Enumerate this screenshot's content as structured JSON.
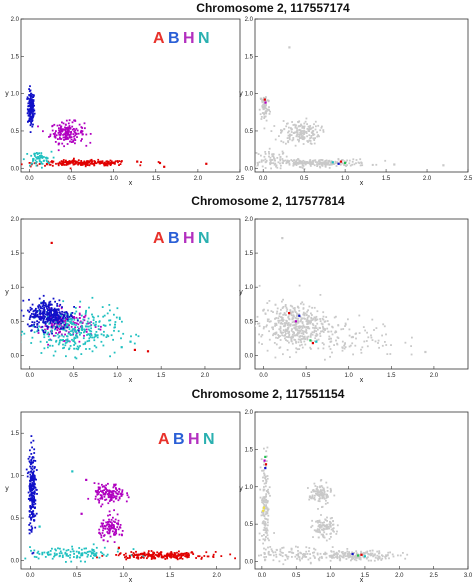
{
  "figure": {
    "legend_letters": [
      {
        "text": "A",
        "color": "#e8322b"
      },
      {
        "text": "B",
        "color": "#2a5fd6"
      },
      {
        "text": "H",
        "color": "#b22fbf"
      },
      {
        "text": "N",
        "color": "#2ab0b0"
      }
    ]
  },
  "chart_data": [
    {
      "type": "scatter",
      "title": "Chromosome 2, 117557174",
      "panels": [
        {
          "xlabel": "x",
          "ylabel": "y",
          "xlim": [
            -0.1,
            2.5
          ],
          "ylim": [
            -0.05,
            2.0
          ],
          "xticks": [
            "0.0",
            "0.5",
            "1.0",
            "1.5",
            "2.0",
            "2.5"
          ],
          "yticks": [
            "0.0",
            "0.5",
            "1.0",
            "1.5",
            "2.0"
          ],
          "legend": true,
          "clusters": [
            {
              "genotype": "B",
              "color": "#1010c8",
              "cx": 0.02,
              "cy": 0.8,
              "sx": 0.02,
              "sy": 0.12,
              "n": 150
            },
            {
              "genotype": "H",
              "color": "#b000c0",
              "cx": 0.45,
              "cy": 0.48,
              "sx": 0.1,
              "sy": 0.07,
              "n": 170
            },
            {
              "genotype": "A",
              "color": "#e00000",
              "cx": 0.65,
              "cy": 0.07,
              "sx": 0.28,
              "sy": 0.018,
              "n": 220
            },
            {
              "genotype": "N",
              "color": "#20c0c0",
              "cx": 0.1,
              "cy": 0.12,
              "sx": 0.08,
              "sy": 0.05,
              "n": 55
            }
          ],
          "outliers": [
            {
              "x": 1.55,
              "y": 0.07,
              "color": "#e00000"
            },
            {
              "x": 1.6,
              "y": 0.02,
              "color": "#e00000"
            },
            {
              "x": 2.1,
              "y": 0.06,
              "color": "#e00000"
            },
            {
              "x": 1.28,
              "y": 0.09,
              "color": "#e00000"
            }
          ]
        },
        {
          "xlabel": "x",
          "ylabel": "y",
          "xlim": [
            -0.1,
            2.5
          ],
          "ylim": [
            -0.05,
            2.0
          ],
          "xticks": [
            "0.0",
            "0.5",
            "1.0",
            "1.5",
            "2.0",
            "2.5"
          ],
          "yticks": [
            "0.0",
            "0.5",
            "1.0",
            "1.5",
            "2.0"
          ],
          "legend": false,
          "clusters": [
            {
              "genotype": "background",
              "color": "#c9c9c9",
              "cx": 0.02,
              "cy": 0.82,
              "sx": 0.03,
              "sy": 0.1,
              "n": 70
            },
            {
              "genotype": "background",
              "color": "#c9c9c9",
              "cx": 0.45,
              "cy": 0.48,
              "sx": 0.12,
              "sy": 0.08,
              "n": 170
            },
            {
              "genotype": "background",
              "color": "#c9c9c9",
              "cx": 0.65,
              "cy": 0.07,
              "sx": 0.32,
              "sy": 0.025,
              "n": 230
            },
            {
              "genotype": "background",
              "color": "#c9c9c9",
              "cx": 0.12,
              "cy": 0.13,
              "sx": 0.1,
              "sy": 0.06,
              "n": 50
            }
          ],
          "outliers": [
            {
              "x": 0.02,
              "y": 0.92,
              "color": "#e00000"
            },
            {
              "x": 0.03,
              "y": 0.88,
              "color": "#b000c0"
            },
            {
              "x": 0.85,
              "y": 0.08,
              "color": "#20c0c0"
            },
            {
              "x": 0.92,
              "y": 0.06,
              "color": "#1010c8"
            },
            {
              "x": 1.0,
              "y": 0.07,
              "color": "#20c050"
            },
            {
              "x": 0.95,
              "y": 0.09,
              "color": "#e00000"
            },
            {
              "x": 0.32,
              "y": 1.62,
              "color": "#c9c9c9"
            },
            {
              "x": 1.6,
              "y": 0.05,
              "color": "#c9c9c9"
            },
            {
              "x": 2.2,
              "y": 0.04,
              "color": "#c9c9c9"
            }
          ]
        }
      ]
    },
    {
      "type": "scatter",
      "title": "Chromosome 2, 117577814",
      "panels": [
        {
          "xlabel": "x",
          "ylabel": "y",
          "xlim": [
            -0.1,
            2.4
          ],
          "ylim": [
            -0.2,
            2.0
          ],
          "xticks": [
            "0.0",
            "0.5",
            "1.0",
            "1.5",
            "2.0"
          ],
          "yticks": [
            "0.0",
            "0.5",
            "1.0",
            "1.5",
            "2.0"
          ],
          "legend": true,
          "clusters": [
            {
              "genotype": "H",
              "color": "#b000c0",
              "cx": 0.4,
              "cy": 0.45,
              "sx": 0.15,
              "sy": 0.1,
              "n": 160
            },
            {
              "genotype": "N",
              "color": "#20c0c0",
              "cx": 0.5,
              "cy": 0.35,
              "sx": 0.25,
              "sy": 0.17,
              "n": 300
            },
            {
              "genotype": "B",
              "color": "#1010c8",
              "cx": 0.22,
              "cy": 0.6,
              "sx": 0.12,
              "sy": 0.11,
              "n": 300
            }
          ],
          "outliers": [
            {
              "x": 0.25,
              "y": 1.65,
              "color": "#e00000"
            },
            {
              "x": 1.2,
              "y": 0.08,
              "color": "#e00000"
            },
            {
              "x": 1.35,
              "y": 0.06,
              "color": "#e00000"
            },
            {
              "x": 1.05,
              "y": 0.12,
              "color": "#20c0c0"
            },
            {
              "x": 1.15,
              "y": 0.2,
              "color": "#20c0c0"
            }
          ]
        },
        {
          "xlabel": "x",
          "ylabel": "y",
          "xlim": [
            -0.1,
            2.4
          ],
          "ylim": [
            -0.2,
            2.0
          ],
          "xticks": [
            "0.0",
            "0.5",
            "1.0",
            "1.5",
            "2.0"
          ],
          "yticks": [
            "0.0",
            "0.5",
            "1.0",
            "1.5",
            "2.0"
          ],
          "legend": false,
          "clusters": [
            {
              "genotype": "background",
              "color": "#c9c9c9",
              "cx": 0.35,
              "cy": 0.45,
              "sx": 0.2,
              "sy": 0.16,
              "n": 420
            },
            {
              "genotype": "background",
              "color": "#c9c9c9",
              "cx": 0.9,
              "cy": 0.25,
              "sx": 0.35,
              "sy": 0.14,
              "n": 120
            }
          ],
          "outliers": [
            {
              "x": 0.3,
              "y": 0.62,
              "color": "#e00000"
            },
            {
              "x": 0.42,
              "y": 0.58,
              "color": "#1010c8"
            },
            {
              "x": 0.38,
              "y": 0.5,
              "color": "#b000c0"
            },
            {
              "x": 0.55,
              "y": 0.22,
              "color": "#20c050"
            },
            {
              "x": 0.62,
              "y": 0.2,
              "color": "#20c0c0"
            },
            {
              "x": 0.58,
              "y": 0.18,
              "color": "#e00000"
            },
            {
              "x": 0.22,
              "y": 1.72,
              "color": "#c9c9c9"
            },
            {
              "x": 1.9,
              "y": 0.05,
              "color": "#c9c9c9"
            }
          ]
        }
      ]
    },
    {
      "type": "scatter",
      "title": "Chromosome 2, 117551154",
      "panels": [
        {
          "xlabel": "x",
          "ylabel": "y",
          "xlim": [
            -0.1,
            2.25
          ],
          "ylim": [
            -0.1,
            1.75
          ],
          "xticks": [
            "0.0",
            "0.5",
            "1.0",
            "1.5",
            "2.0"
          ],
          "yticks": [
            "0.0",
            "0.5",
            "1.0",
            "1.5"
          ],
          "legend": true,
          "clusters": [
            {
              "genotype": "B",
              "color": "#1010c8",
              "cx": 0.02,
              "cy": 0.85,
              "sx": 0.02,
              "sy": 0.25,
              "n": 220
            },
            {
              "genotype": "H",
              "color": "#b000c0",
              "cx": 0.85,
              "cy": 0.78,
              "sx": 0.08,
              "sy": 0.06,
              "n": 130
            },
            {
              "genotype": "H",
              "color": "#b000c0",
              "cx": 0.88,
              "cy": 0.38,
              "sx": 0.07,
              "sy": 0.06,
              "n": 100
            },
            {
              "genotype": "A",
              "color": "#e00000",
              "cx": 1.4,
              "cy": 0.06,
              "sx": 0.25,
              "sy": 0.02,
              "n": 220
            },
            {
              "genotype": "N",
              "color": "#20c0c0",
              "cx": 0.45,
              "cy": 0.08,
              "sx": 0.28,
              "sy": 0.04,
              "n": 120
            }
          ],
          "outliers": [
            {
              "x": 0.45,
              "y": 1.05,
              "color": "#20c0c0"
            },
            {
              "x": 0.6,
              "y": 0.95,
              "color": "#b000c0"
            },
            {
              "x": 0.55,
              "y": 0.55,
              "color": "#b000c0"
            },
            {
              "x": 0.95,
              "y": 0.15,
              "color": "#e00000"
            },
            {
              "x": 0.1,
              "y": 0.4,
              "color": "#20c0c0"
            }
          ]
        },
        {
          "xlabel": "x",
          "ylabel": "y",
          "xlim": [
            -0.1,
            3.0
          ],
          "ylim": [
            -0.1,
            2.0
          ],
          "xticks": [
            "0.0",
            "0.5",
            "1.0",
            "1.5",
            "2.0",
            "2.5",
            "3.0"
          ],
          "yticks": [
            "0.0",
            "0.5",
            "1.0",
            "1.5",
            "2.0"
          ],
          "legend": false,
          "clusters": [
            {
              "genotype": "background",
              "color": "#c9c9c9",
              "cx": 0.05,
              "cy": 0.7,
              "sx": 0.03,
              "sy": 0.35,
              "n": 150
            },
            {
              "genotype": "background",
              "color": "#c9c9c9",
              "cx": 0.85,
              "cy": 0.9,
              "sx": 0.08,
              "sy": 0.07,
              "n": 110
            },
            {
              "genotype": "background",
              "color": "#c9c9c9",
              "cx": 0.9,
              "cy": 0.45,
              "sx": 0.08,
              "sy": 0.07,
              "n": 100
            },
            {
              "genotype": "background",
              "color": "#c9c9c9",
              "cx": 1.4,
              "cy": 0.08,
              "sx": 0.3,
              "sy": 0.03,
              "n": 180
            },
            {
              "genotype": "background",
              "color": "#c9c9c9",
              "cx": 0.5,
              "cy": 0.1,
              "sx": 0.3,
              "sy": 0.05,
              "n": 100
            }
          ],
          "outliers": [
            {
              "x": 0.05,
              "y": 1.4,
              "color": "#20c050"
            },
            {
              "x": 0.04,
              "y": 1.35,
              "color": "#b000c0"
            },
            {
              "x": 0.06,
              "y": 1.3,
              "color": "#e00000"
            },
            {
              "x": 0.05,
              "y": 1.25,
              "color": "#1010c8"
            },
            {
              "x": 0.03,
              "y": 0.72,
              "color": "#f0e040"
            },
            {
              "x": 0.02,
              "y": 0.68,
              "color": "#f0e040"
            },
            {
              "x": 1.32,
              "y": 0.1,
              "color": "#1010c8"
            },
            {
              "x": 1.4,
              "y": 0.08,
              "color": "#20c050"
            },
            {
              "x": 1.45,
              "y": 0.09,
              "color": "#e00000"
            },
            {
              "x": 1.5,
              "y": 0.07,
              "color": "#20c0c0"
            }
          ]
        }
      ]
    }
  ]
}
